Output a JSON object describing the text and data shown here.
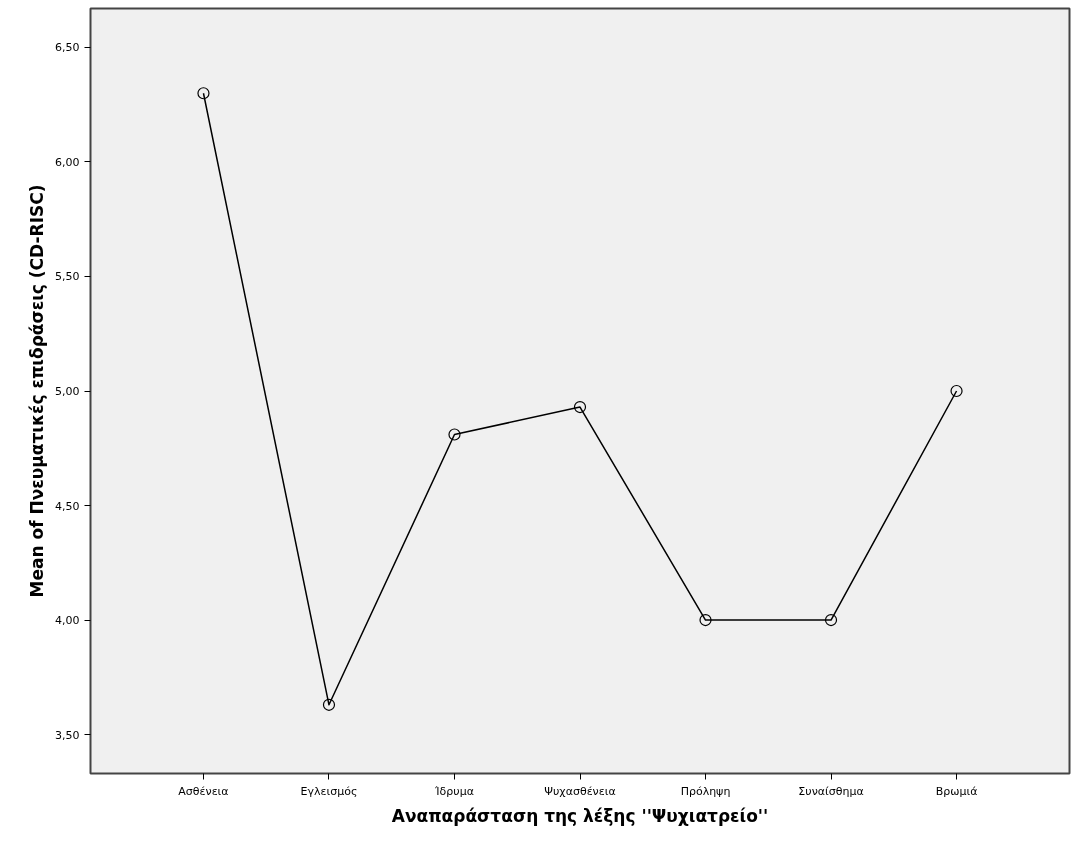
{
  "chart_data": {
    "type": "line",
    "xlabel": "Αναπαράσταση της λέξης ''Ψυχιατρείο''",
    "ylabel": "Mean of Πνευματικές επιδράσεις (CD-RISC)",
    "categories": [
      "Ασθένεια",
      "Εγλεισμός",
      "Ίδρυμα",
      "Ψυχασθένεια",
      "Πρόληψη",
      "Συναίσθημα",
      "Βρωμιά"
    ],
    "series": [
      {
        "color": "#000000",
        "values": [
          6.3,
          3.63,
          4.81,
          4.93,
          4.0,
          4.0,
          5.0
        ]
      }
    ],
    "ylim": [
      3.33,
      6.67
    ],
    "yticks": [
      {
        "value": 3.5,
        "label": "3,50"
      },
      {
        "value": 4.0,
        "label": "4,00"
      },
      {
        "value": 4.5,
        "label": "4,50"
      },
      {
        "value": 5.0,
        "label": "5,00"
      },
      {
        "value": 5.5,
        "label": "5,50"
      },
      {
        "value": 6.0,
        "label": "6,00"
      },
      {
        "value": 6.5,
        "label": "6,50"
      }
    ],
    "grid": false,
    "marker": "circle",
    "line_style": "solid"
  }
}
